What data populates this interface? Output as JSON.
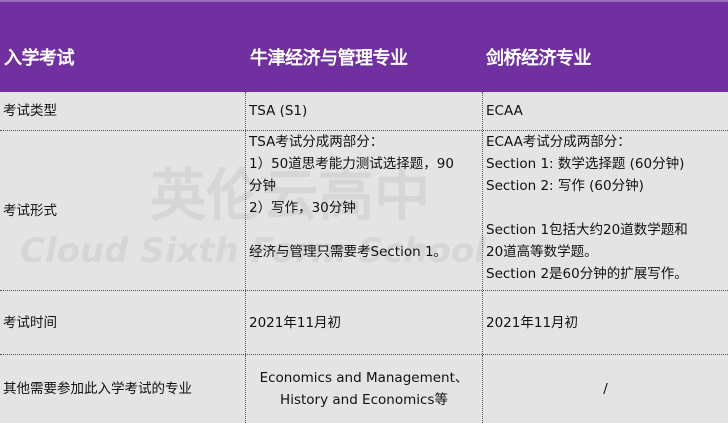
{
  "header": [
    "入学考试",
    "牛津经济与管理专业",
    "剑桥经济专业"
  ],
  "rows": [
    {
      "label": "考试类型",
      "oxford": [
        "TSA (S1)"
      ],
      "cambridge": [
        "ECAA"
      ]
    },
    {
      "label": "考试形式",
      "oxford": [
        "TSA考试分成两部分：",
        "1）50道思考能力测试选择题，90",
        "分钟",
        "2）写作，30分钟",
        "",
        "经济与管理只需要考Section 1。"
      ],
      "cambridge": [
        "ECAA考试分成两部分：",
        "Section 1: 数学选择题 (60分钟)",
        "Section 2: 写作 (60分钟)",
        "",
        "Section 1包括大约20道数学题和",
        "20道高等数学题。",
        "Section 2是60分钟的扩展写作。"
      ]
    },
    {
      "label": "考试时间",
      "oxford": [
        "2021年11月初"
      ],
      "cambridge": [
        "2021年11月初"
      ]
    },
    {
      "label": "其他需要参加此入学考试的专业",
      "oxford": [
        "Economics and Management、",
        "History and Economics等"
      ],
      "cambridge": [
        "/"
      ]
    }
  ],
  "watermark": {
    "cn": "英伦云高中",
    "en": "Cloud Sixth Form School"
  },
  "colors": {
    "header": "#7030a0",
    "body": "#e4e4e4"
  }
}
